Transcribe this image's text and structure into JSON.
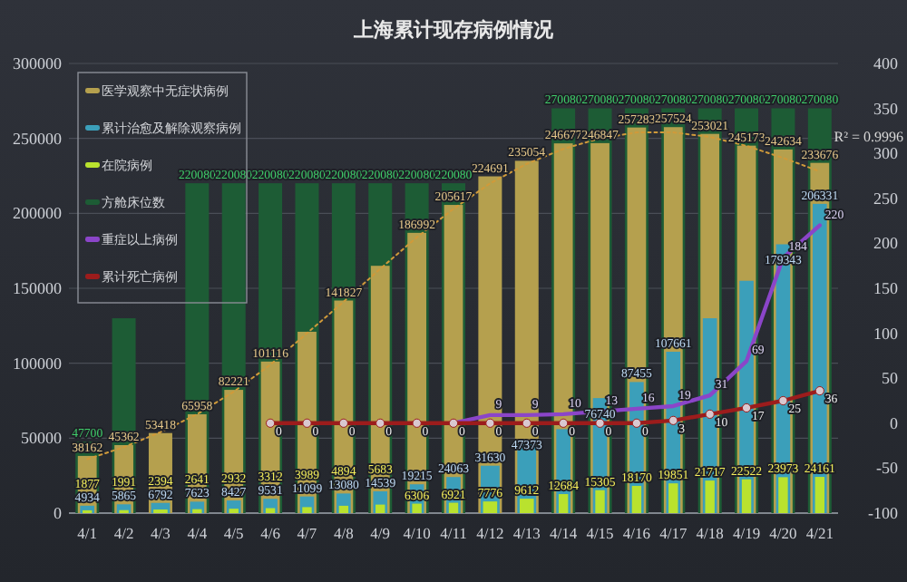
{
  "chart_data": {
    "type": "bar",
    "title": "上海累计现存病例情况",
    "categories": [
      "4/1",
      "4/2",
      "4/3",
      "4/4",
      "4/5",
      "4/6",
      "4/7",
      "4/8",
      "4/9",
      "4/10",
      "4/11",
      "4/12",
      "4/13",
      "4/14",
      "4/15",
      "4/16",
      "4/17",
      "4/18",
      "4/19",
      "4/20",
      "4/21"
    ],
    "series": [
      {
        "name": "医学观察中无症状病例",
        "color": "#b5a04e",
        "values": [
          38162,
          45362,
          53418,
          65958,
          82221,
          101116,
          121000,
          141827,
          165000,
          186992,
          205617,
          224691,
          235054,
          246677,
          246847,
          257283,
          257524,
          253021,
          245173,
          242634,
          233676
        ],
        "value_labels": [
          "38162",
          "45362",
          "53418",
          "65958",
          "82221",
          "101116",
          null,
          "141827",
          null,
          "186992",
          "205617",
          "224691",
          "235054",
          "246677",
          "246847",
          "257283",
          "257524",
          "253021",
          "245173",
          "242634",
          "233676"
        ]
      },
      {
        "name": "累计治愈及解除观察病例",
        "color": "#3b9fba",
        "values": [
          4934,
          5865,
          6792,
          7623,
          8427,
          9531,
          11099,
          13080,
          14539,
          19215,
          24063,
          31630,
          47373,
          56000,
          76740,
          87455,
          107661,
          130000,
          155000,
          179343,
          206331
        ],
        "value_labels": [
          "4934",
          "5865",
          "6792",
          "7623",
          "8427",
          "9531",
          "11099",
          "13080",
          "14539",
          "19215",
          "24063",
          "31630",
          "47373",
          null,
          "76740",
          "87455",
          "107661",
          null,
          null,
          "179343",
          "206331"
        ]
      },
      {
        "name": "在院病例",
        "color": "#b9e22e",
        "values": [
          1877,
          1991,
          2394,
          2641,
          2932,
          3312,
          3989,
          4894,
          5683,
          6306,
          6921,
          7776,
          9612,
          12684,
          15305,
          18170,
          19851,
          21717,
          22522,
          23973,
          24161
        ],
        "value_labels": [
          "1877",
          "1991",
          "2394",
          "2641",
          "2932",
          "3312",
          "3989",
          "4894",
          "5683",
          "6306",
          "6921",
          "7776",
          "9612",
          "12684",
          "15305",
          "18170",
          "19851",
          "21717",
          "22522",
          "23973",
          "24161"
        ]
      },
      {
        "name": "方舱床位数",
        "color": "#1d5c35",
        "values": [
          47700,
          130000,
          null,
          220080,
          220080,
          220080,
          220080,
          220080,
          220080,
          220080,
          220080,
          null,
          null,
          270080,
          270080,
          270080,
          270080,
          270080,
          270080,
          270080,
          270080
        ],
        "value_labels": [
          "47700",
          null,
          null,
          "220080",
          "220080",
          "220080",
          "220080",
          "220080",
          "220080",
          "220080",
          "220080",
          null,
          null,
          "270080",
          "270080",
          "270080",
          "270080",
          "270080",
          "270080",
          "270080",
          "270080"
        ]
      },
      {
        "name": "重症以上病例",
        "type": "line",
        "axis": "y2",
        "color": "#8b45c9",
        "values": [
          null,
          null,
          null,
          null,
          null,
          null,
          null,
          null,
          null,
          null,
          0,
          9,
          9,
          10,
          13,
          16,
          19,
          31,
          69,
          184,
          220
        ],
        "value_labels": [
          null,
          null,
          null,
          null,
          null,
          null,
          null,
          null,
          null,
          null,
          null,
          "9",
          "9",
          "10",
          "13",
          "16",
          "19",
          "31",
          "69",
          "184",
          "220"
        ]
      },
      {
        "name": "累计死亡病例",
        "type": "line",
        "axis": "y2",
        "color": "#9c1c1c",
        "marker": "circle",
        "values": [
          null,
          null,
          null,
          null,
          null,
          0,
          0,
          0,
          0,
          0,
          0,
          0,
          0,
          0,
          0,
          0,
          3,
          10,
          17,
          25,
          36
        ],
        "value_labels": [
          null,
          null,
          null,
          null,
          null,
          "0",
          "0",
          "0",
          "0",
          "0",
          "0",
          "0",
          "0",
          "0",
          "0",
          "0",
          "3",
          "10",
          "17",
          "25",
          "36"
        ]
      },
      {
        "type": "line",
        "line_style": "dotted",
        "color": "#d09a3a",
        "values": [
          36000,
          44000,
          54000,
          66000,
          81000,
          99000,
          120000,
          141000,
          163000,
          184000,
          203000,
          220000,
          233000,
          243000,
          250000,
          254000,
          254000,
          251000,
          245000,
          237000,
          228000
        ]
      }
    ],
    "ylim": [
      0,
      300000
    ],
    "yticks": [
      0,
      50000,
      100000,
      150000,
      200000,
      250000,
      300000
    ],
    "y2lim": [
      -100,
      400
    ],
    "y2ticks": [
      -100,
      -50,
      0,
      50,
      100,
      150,
      200,
      250,
      300,
      350,
      400
    ],
    "grid": "y",
    "legend": "top left",
    "annotations": [
      "R² = 0.9996"
    ]
  }
}
